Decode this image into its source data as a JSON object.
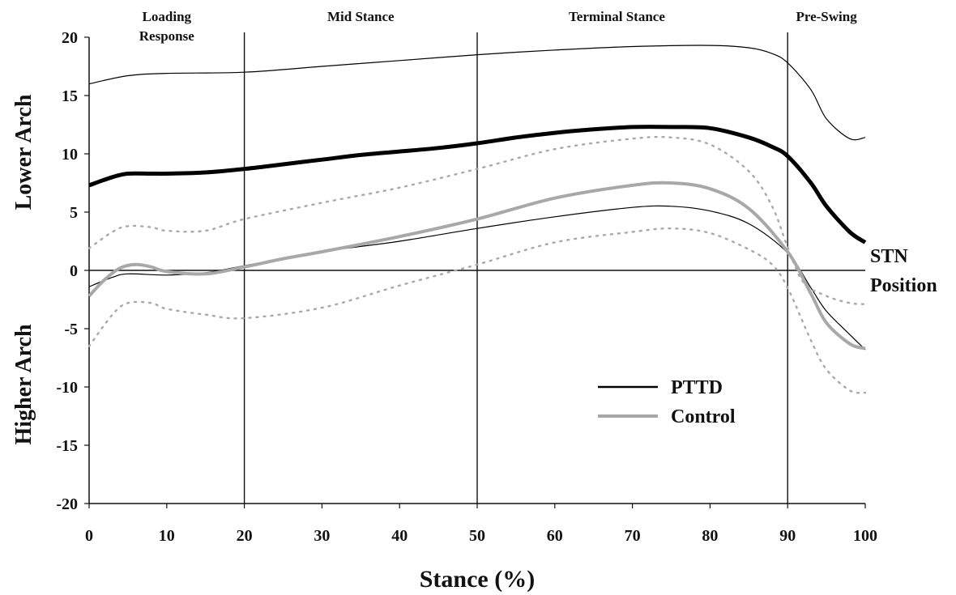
{
  "chart_data": {
    "type": "line",
    "xlabel": "Stance (%)",
    "ylabel_upper": "Lower Arch",
    "ylabel_lower": "Higher Arch",
    "xlim": [
      0,
      100
    ],
    "ylim": [
      -20,
      20
    ],
    "x_ticks": [
      0,
      10,
      20,
      30,
      40,
      50,
      60,
      70,
      80,
      90,
      100
    ],
    "y_ticks": [
      20,
      15,
      10,
      5,
      0,
      -5,
      -10,
      -15,
      -20
    ],
    "phase_boundaries": [
      20,
      50,
      90
    ],
    "phases": [
      {
        "line1": "Loading",
        "line2": "Response",
        "x": 10
      },
      {
        "line1": "Mid Stance",
        "line2": "",
        "x": 35
      },
      {
        "line1": "Terminal Stance",
        "line2": "",
        "x": 68
      },
      {
        "line1": "Pre-Swing",
        "line2": "",
        "x": 95
      }
    ],
    "zero_line_label_1": "STN",
    "zero_line_label_2": "Position",
    "legend": [
      {
        "name": "PTTD",
        "color": "#000000"
      },
      {
        "name": "Control",
        "color": "#a8a8a8"
      }
    ],
    "grid": false,
    "series": [
      {
        "name": "PTTD",
        "role": "mean",
        "color": "#000000",
        "x": [
          0,
          3,
          5,
          8,
          10,
          15,
          20,
          25,
          30,
          35,
          40,
          45,
          50,
          55,
          60,
          65,
          70,
          75,
          80,
          85,
          88,
          90,
          93,
          95,
          98,
          100
        ],
        "y": [
          7.3,
          8.0,
          8.3,
          8.3,
          8.3,
          8.4,
          8.7,
          9.1,
          9.5,
          9.9,
          10.2,
          10.5,
          10.9,
          11.4,
          11.8,
          12.1,
          12.3,
          12.3,
          12.2,
          11.4,
          10.6,
          9.8,
          7.5,
          5.5,
          3.3,
          2.4
        ]
      },
      {
        "name": "PTTD",
        "role": "upper-sd",
        "color": "#000000",
        "x": [
          0,
          5,
          10,
          20,
          30,
          40,
          50,
          60,
          70,
          80,
          85,
          88,
          90,
          93,
          95,
          98,
          100
        ],
        "y": [
          16.0,
          16.7,
          16.9,
          17.0,
          17.5,
          18.0,
          18.5,
          18.9,
          19.2,
          19.3,
          19.1,
          18.6,
          17.8,
          15.5,
          13.0,
          11.3,
          11.4
        ]
      },
      {
        "name": "PTTD",
        "role": "lower-sd",
        "color": "#000000",
        "x": [
          0,
          3,
          5,
          10,
          15,
          20,
          30,
          40,
          50,
          60,
          70,
          75,
          80,
          85,
          90,
          93,
          95,
          98,
          100
        ],
        "y": [
          -1.4,
          -0.6,
          -0.3,
          -0.4,
          -0.2,
          0.4,
          1.6,
          2.5,
          3.6,
          4.6,
          5.4,
          5.5,
          5.1,
          4.0,
          1.5,
          -1.5,
          -3.5,
          -5.5,
          -6.8
        ]
      },
      {
        "name": "Control",
        "role": "mean",
        "color": "#a8a8a8",
        "x": [
          0,
          2,
          4,
          6,
          8,
          10,
          15,
          20,
          25,
          30,
          40,
          50,
          60,
          70,
          75,
          80,
          85,
          90,
          93,
          95,
          98,
          100
        ],
        "y": [
          -2.2,
          -0.8,
          0.2,
          0.5,
          0.3,
          -0.1,
          -0.3,
          0.3,
          1.0,
          1.6,
          2.9,
          4.4,
          6.2,
          7.3,
          7.5,
          7.0,
          5.3,
          1.6,
          -2.0,
          -4.5,
          -6.3,
          -6.7
        ]
      },
      {
        "name": "Control",
        "role": "upper-sd",
        "color": "#a8a8a8",
        "x": [
          0,
          3,
          5,
          8,
          10,
          15,
          20,
          30,
          40,
          50,
          60,
          70,
          75,
          80,
          85,
          88,
          90,
          92,
          95,
          98,
          100
        ],
        "y": [
          1.9,
          3.3,
          3.8,
          3.7,
          3.4,
          3.4,
          4.4,
          5.8,
          7.1,
          8.7,
          10.4,
          11.3,
          11.4,
          10.8,
          8.5,
          5.5,
          2.0,
          -1.0,
          -2.2,
          -2.8,
          -2.9
        ]
      },
      {
        "name": "Control",
        "role": "lower-sd",
        "color": "#a8a8a8",
        "x": [
          0,
          3,
          5,
          8,
          10,
          15,
          20,
          30,
          40,
          50,
          60,
          70,
          75,
          80,
          85,
          88,
          90,
          93,
          95,
          98,
          100
        ],
        "y": [
          -6.5,
          -3.8,
          -2.8,
          -2.8,
          -3.3,
          -3.8,
          -4.1,
          -3.2,
          -1.3,
          0.5,
          2.4,
          3.3,
          3.6,
          3.2,
          1.8,
          0.5,
          -1.5,
          -6.0,
          -8.5,
          -10.3,
          -10.5
        ]
      }
    ]
  }
}
